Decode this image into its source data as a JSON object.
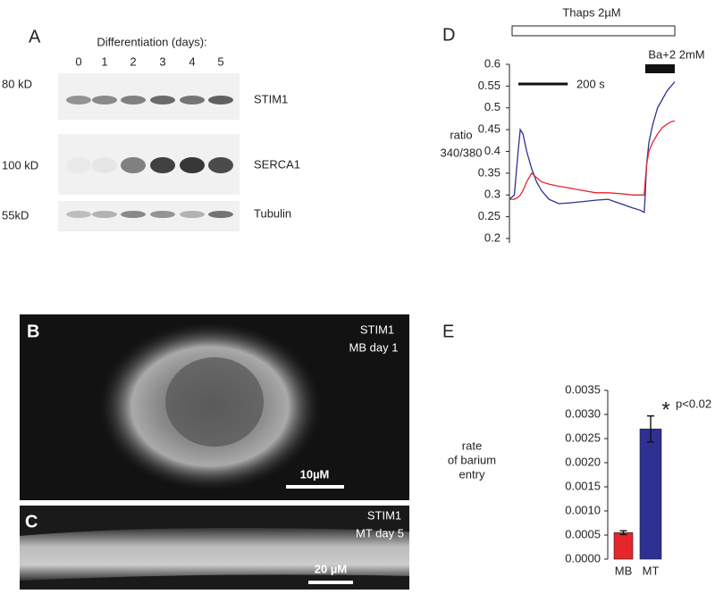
{
  "figure": {
    "panel_a": {
      "label": "A",
      "title": "Differentiation (days):",
      "lanes": [
        "0",
        "1",
        "2",
        "3",
        "4",
        "5"
      ],
      "markers": [
        "80 kD",
        "100 kD",
        "55kD"
      ],
      "proteins": [
        "STIM1",
        "SERCA1",
        "Tubulin"
      ]
    },
    "panel_b": {
      "label": "B",
      "lines": [
        "STIM1",
        "MB day 1"
      ],
      "scale": "10µM"
    },
    "panel_c": {
      "label": "C",
      "lines": [
        "STIM1",
        "MT day 5"
      ],
      "scale": "20 µM"
    }
  },
  "chart_data": [
    {
      "type": "line",
      "panel_label": "D",
      "y_label": [
        "ratio",
        "340/380"
      ],
      "treatments": [
        "Thaps 2µM",
        "Ba+2 2mM"
      ],
      "scale_bar": {
        "label": "200 s",
        "length": 200
      },
      "x": [
        0,
        20,
        35,
        44,
        55,
        70,
        90,
        110,
        130,
        160,
        200,
        250,
        300,
        350,
        400,
        450,
        500,
        530,
        546,
        550,
        556,
        565,
        580,
        600,
        620,
        640,
        655,
        670
      ],
      "xlim": [
        0,
        670
      ],
      "ylim": [
        0.2,
        0.6
      ],
      "yticks": [
        0.2,
        0.25,
        0.3,
        0.35,
        0.4,
        0.45,
        0.5,
        0.55,
        0.6
      ],
      "series": [
        {
          "name": "MT",
          "color": "#2e3192",
          "values": [
            0.29,
            0.3,
            0.4,
            0.45,
            0.44,
            0.4,
            0.36,
            0.33,
            0.31,
            0.29,
            0.28,
            0.282,
            0.285,
            0.288,
            0.29,
            0.28,
            0.27,
            0.265,
            0.26,
            0.3,
            0.37,
            0.42,
            0.46,
            0.5,
            0.52,
            0.54,
            0.55,
            0.56
          ]
        },
        {
          "name": "MB",
          "color": "#e5262b",
          "values": [
            0.29,
            0.29,
            0.295,
            0.3,
            0.31,
            0.33,
            0.35,
            0.34,
            0.33,
            0.325,
            0.32,
            0.315,
            0.31,
            0.305,
            0.305,
            0.303,
            0.3,
            0.3,
            0.3,
            0.33,
            0.37,
            0.4,
            0.42,
            0.44,
            0.455,
            0.463,
            0.468,
            0.47
          ]
        }
      ]
    },
    {
      "type": "bar",
      "panel_label": "E",
      "y_label": [
        "rate",
        "of barium",
        "entry"
      ],
      "categories": [
        "MB",
        "MT"
      ],
      "values": [
        0.00055,
        0.0027
      ],
      "errors": [
        4e-05,
        0.00027
      ],
      "colors": [
        "#e5262b",
        "#2e3192"
      ],
      "annotation": [
        "*",
        "p<0.02"
      ],
      "ylim": [
        0,
        0.0035
      ],
      "yticks": [
        {
          "value": 0,
          "label": "0.0000"
        },
        {
          "value": 0.0005,
          "label": "0.0005"
        },
        {
          "value": 0.001,
          "label": "0.0010"
        },
        {
          "value": 0.0015,
          "label": "0.0015"
        },
        {
          "value": 0.002,
          "label": "0.0020"
        },
        {
          "value": 0.0025,
          "label": "0.0025"
        },
        {
          "value": 0.003,
          "label": "0.0030"
        },
        {
          "value": 0.0035,
          "label": "0.0035"
        }
      ]
    }
  ]
}
